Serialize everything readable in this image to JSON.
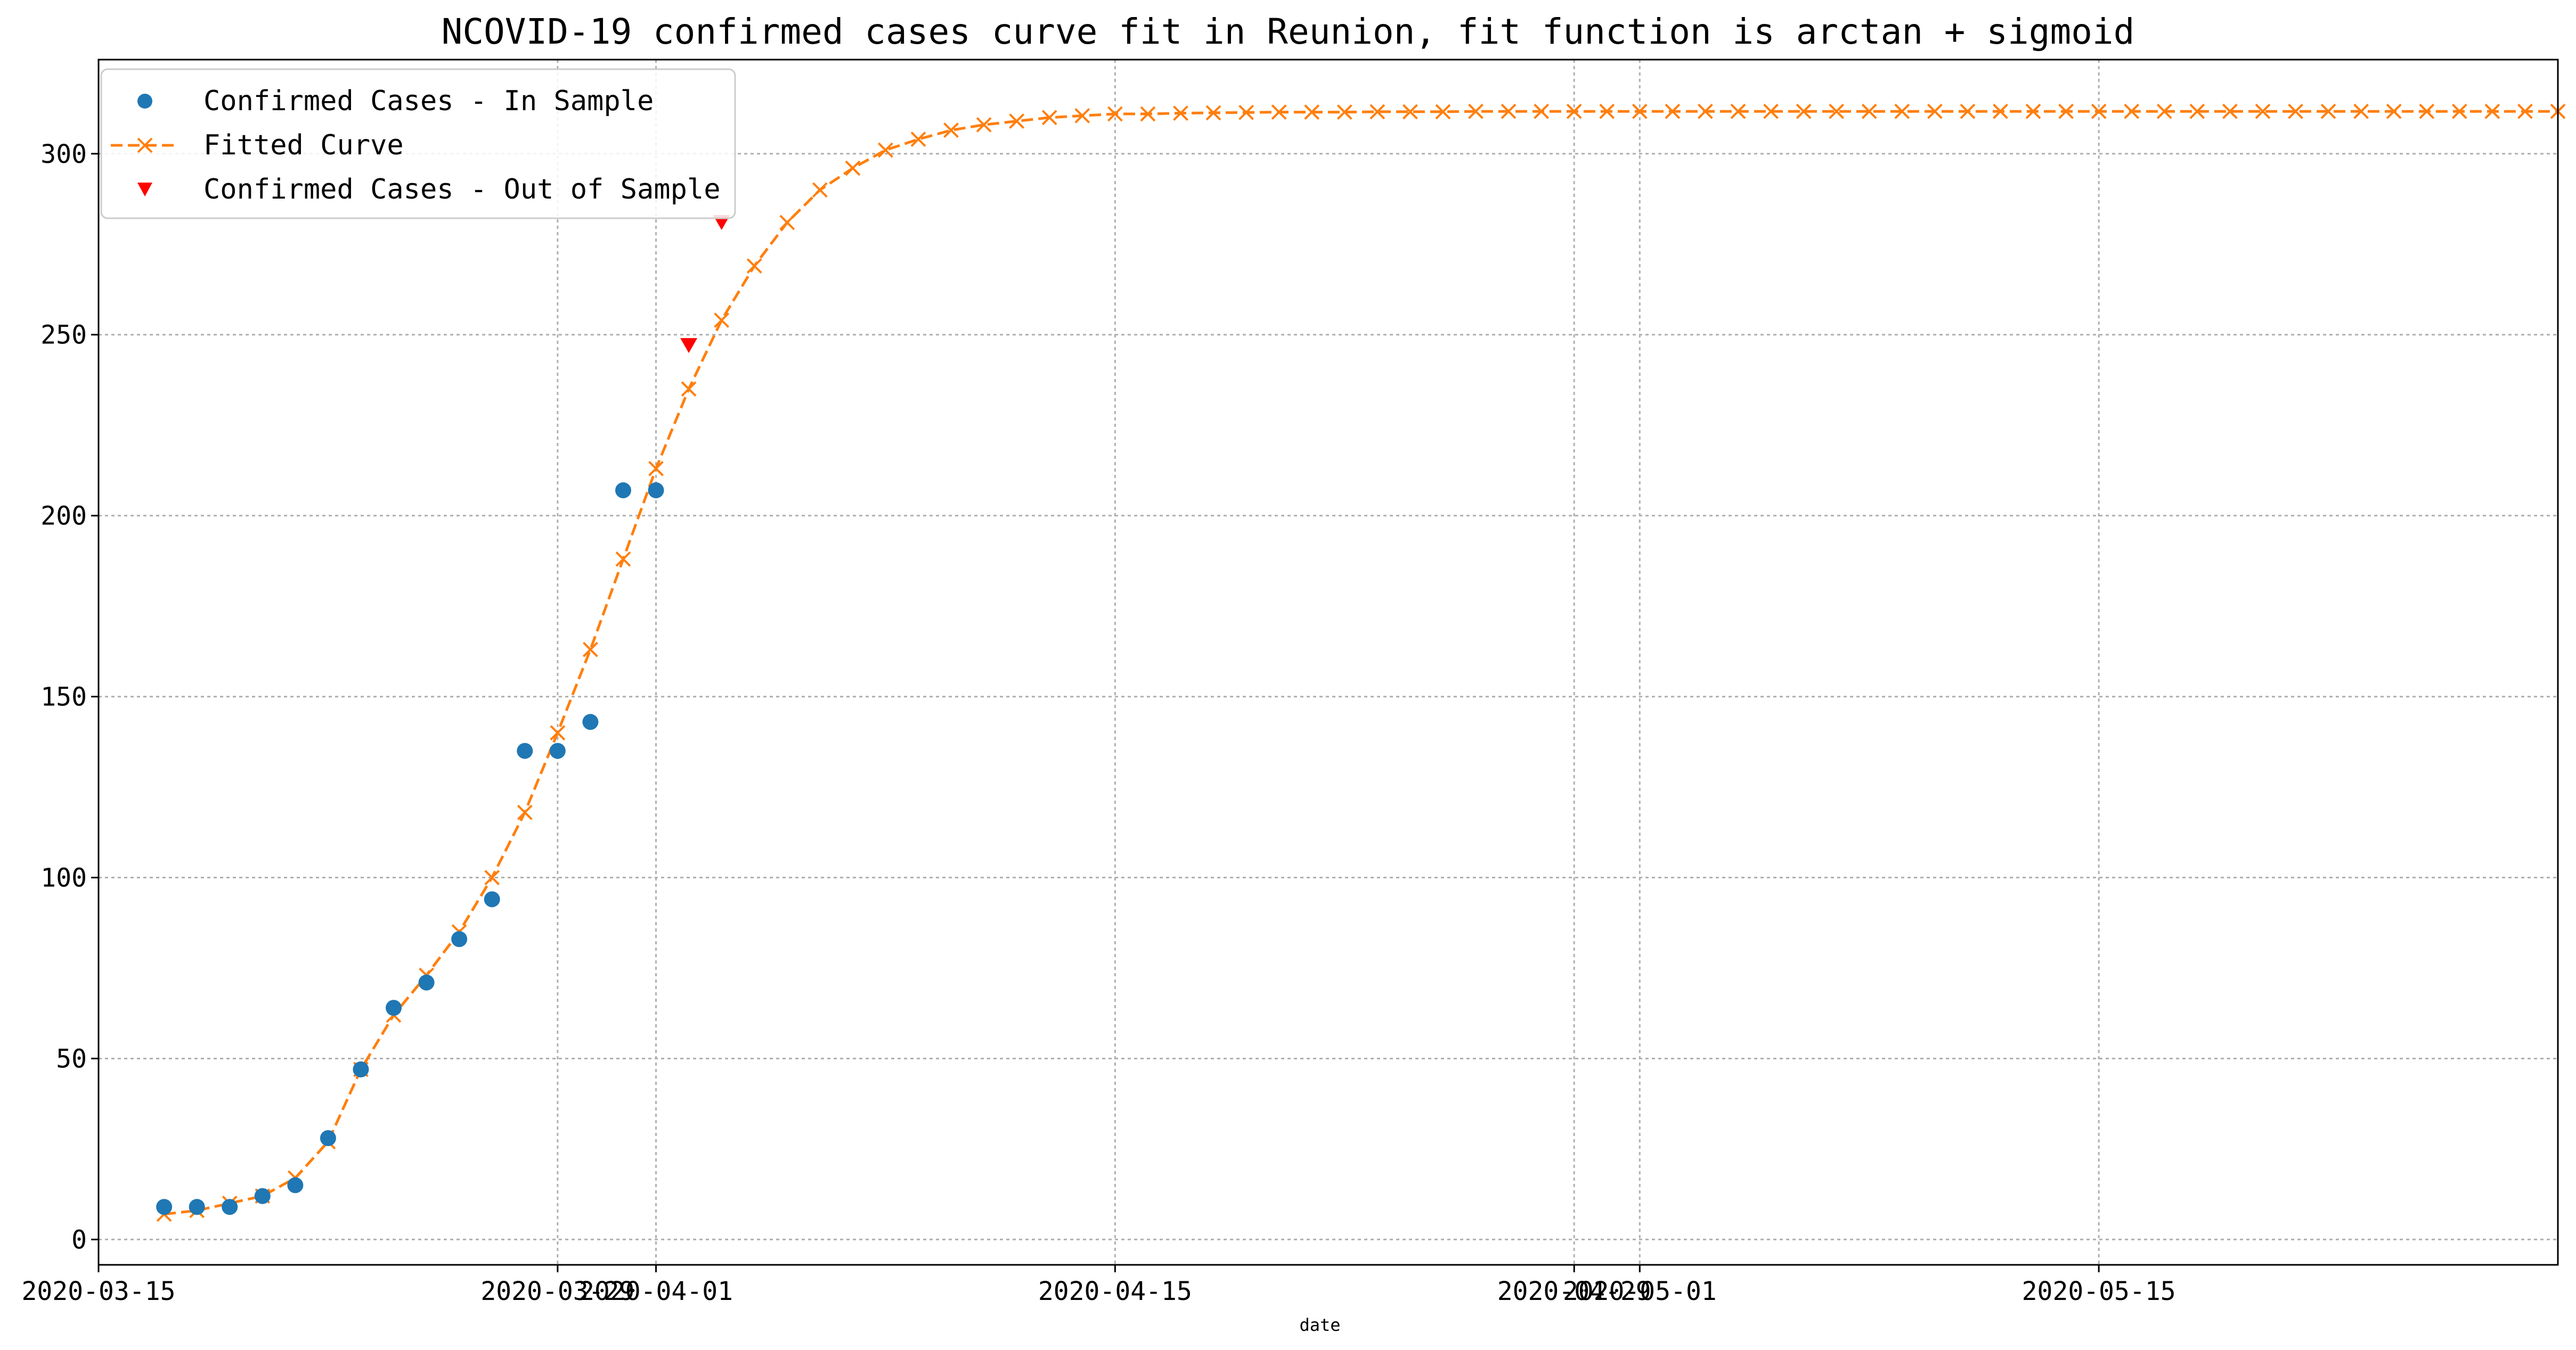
{
  "chart_data": {
    "type": "line",
    "title": "NCOVID-19 confirmed cases curve fit in Reunion, fit function is arctan + sigmoid",
    "xlabel": "date",
    "ylabel": "",
    "x_start_date": "2020-03-17",
    "x_tick_labels": [
      "2020-03-15",
      "2020-03-29",
      "2020-04-01",
      "2020-04-15",
      "2020-04-29",
      "2020-05-01",
      "2020-05-15"
    ],
    "x_tick_dates": [
      "2020-03-15",
      "2020-03-29",
      "2020-04-01",
      "2020-04-15",
      "2020-04-29",
      "2020-05-01",
      "2020-05-15"
    ],
    "xlim": [
      "2020-03-15",
      "2020-05-29"
    ],
    "y_ticks": [
      0,
      50,
      100,
      150,
      200,
      250,
      300
    ],
    "ylim": [
      -7,
      326
    ],
    "grid": true,
    "legend_position": "top-left",
    "series": [
      {
        "name": "Confirmed Cases - In Sample",
        "style": "dots",
        "color": "#1f77b4",
        "x_dates": [
          "2020-03-17",
          "2020-03-18",
          "2020-03-19",
          "2020-03-20",
          "2020-03-21",
          "2020-03-22",
          "2020-03-23",
          "2020-03-24",
          "2020-03-25",
          "2020-03-26",
          "2020-03-27",
          "2020-03-28",
          "2020-03-29",
          "2020-03-30",
          "2020-03-31",
          "2020-04-01"
        ],
        "values": [
          9,
          9,
          9,
          12,
          15,
          28,
          47,
          64,
          71,
          83,
          94,
          135,
          135,
          143,
          207,
          207
        ]
      },
      {
        "name": "Fitted Curve",
        "style": "dashed-x",
        "color": "#ff7f0e",
        "x_start_date": "2020-03-17",
        "values": [
          7,
          8,
          10,
          12,
          17,
          27,
          47,
          62,
          73,
          85,
          100,
          118,
          140,
          163,
          188,
          213,
          235,
          254,
          269,
          281,
          290,
          296,
          301,
          304,
          306.5,
          308,
          309,
          310,
          310.5,
          311,
          311,
          311.2,
          311.3,
          311.4,
          311.5,
          311.5,
          311.5,
          311.6,
          311.6,
          311.6,
          311.7,
          311.7,
          311.7,
          311.7,
          311.7,
          311.7,
          311.7,
          311.7,
          311.7,
          311.7,
          311.7,
          311.7,
          311.7,
          311.7,
          311.7,
          311.7,
          311.7,
          311.7,
          311.7,
          311.7,
          311.7,
          311.7,
          311.7,
          311.7,
          311.7,
          311.7,
          311.7,
          311.7,
          311.7,
          311.7,
          311.7,
          311.7,
          311.7,
          311.7
        ]
      },
      {
        "name": "Confirmed Cases - Out of Sample",
        "style": "triangles",
        "color": "#ff0000",
        "x_dates": [
          "2020-04-02",
          "2020-04-03"
        ],
        "values": [
          247,
          281
        ]
      }
    ]
  }
}
